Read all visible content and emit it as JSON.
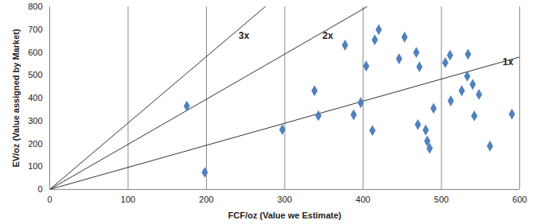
{
  "chart_data": {
    "type": "scatter",
    "x_label": "FCF/oz (Value we Estimate)",
    "y_label": "EV/oz (Value assigned by Market)",
    "x": [
      175,
      198,
      297,
      338,
      343,
      377,
      388,
      397,
      404,
      412,
      415,
      420,
      446,
      453,
      468,
      470,
      472,
      480,
      482,
      485,
      490,
      505,
      511,
      512,
      526,
      533,
      534,
      540,
      542,
      548,
      562,
      590
    ],
    "values": [
      365,
      75,
      262,
      432,
      323,
      632,
      327,
      380,
      540,
      258,
      655,
      700,
      572,
      667,
      600,
      284,
      537,
      260,
      212,
      180,
      355,
      555,
      588,
      388,
      432,
      496,
      592,
      460,
      322,
      416,
      190,
      330
    ],
    "color": "#4f81bd",
    "marker": "diamond",
    "xlim": [
      0,
      600
    ],
    "ylim": [
      0,
      800
    ],
    "xticks": [
      0,
      100,
      200,
      300,
      400,
      500,
      600
    ],
    "yticks": [
      0,
      100,
      200,
      300,
      400,
      500,
      600,
      700,
      800
    ],
    "grid": "x",
    "reference_lines": [
      {
        "label": "3x",
        "x": [
          0,
          275
        ],
        "y": [
          0,
          800
        ]
      },
      {
        "label": "2x",
        "x": [
          0,
          405
        ],
        "y": [
          0,
          800
        ]
      },
      {
        "label": "1x",
        "x": [
          0,
          600
        ],
        "y": [
          0,
          580
        ]
      }
    ]
  }
}
